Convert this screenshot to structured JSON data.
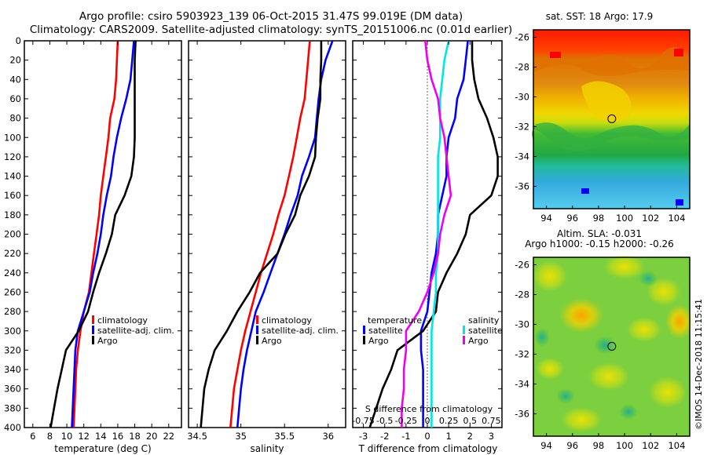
{
  "header": {
    "title_line1": "Argo profile: csiro 5903923_139 06-Oct-2015 31.47S 99.019E (DM data)",
    "title_line2": "Climatology: CARS2009. Satellite-adjusted climatology: synTS_20151006.nc (0.01d earlier)"
  },
  "colors": {
    "climatology": "#ff0000",
    "satellite": "#0000ff",
    "argo": "#000000",
    "temp_sat": "#00e5e5",
    "sal_sat": "#ee00ee"
  },
  "depth_axis": {
    "ticks": [
      "0",
      "20",
      "40",
      "60",
      "80",
      "100",
      "120",
      "140",
      "160",
      "180",
      "200",
      "220",
      "240",
      "260",
      "280",
      "300",
      "320",
      "340",
      "360",
      "380",
      "400"
    ],
    "range": [
      0,
      400
    ]
  },
  "chart_data": [
    {
      "type": "line",
      "name": "temperature",
      "xlabel": "temperature (deg C)",
      "ylabel": "depth",
      "xlim": [
        5,
        23.5
      ],
      "ylim": [
        400,
        0
      ],
      "xticks": [
        "6",
        "8",
        "10",
        "12",
        "14",
        "16",
        "18",
        "20",
        "22"
      ],
      "depth": [
        0,
        20,
        40,
        60,
        80,
        100,
        120,
        140,
        160,
        180,
        200,
        220,
        240,
        260,
        280,
        300,
        320,
        340,
        360,
        380,
        400
      ],
      "series": [
        {
          "name": "climatology",
          "color": "#ff0000",
          "values": [
            16.0,
            15.9,
            15.8,
            15.6,
            15.1,
            14.9,
            14.6,
            14.3,
            14.0,
            13.8,
            13.5,
            13.2,
            12.9,
            12.6,
            12.0,
            11.6,
            11.3,
            11.1,
            11.0,
            10.9,
            10.8
          ]
        },
        {
          "name": "satellite-adj. clim.",
          "color": "#0000ff",
          "values": [
            17.9,
            17.7,
            17.5,
            17.0,
            16.4,
            15.9,
            15.5,
            15.2,
            14.7,
            14.3,
            14.0,
            13.6,
            13.1,
            12.7,
            12.0,
            11.3,
            11.0,
            10.9,
            10.8,
            10.7,
            10.6
          ]
        },
        {
          "name": "Argo",
          "color": "#000000",
          "values": [
            18.1,
            18.0,
            18.0,
            18.0,
            18.0,
            18.0,
            17.9,
            17.6,
            16.8,
            15.7,
            15.3,
            14.6,
            13.8,
            13.1,
            12.5,
            11.4,
            9.9,
            9.4,
            8.9,
            8.5,
            8.1
          ]
        }
      ],
      "legend": [
        "climatology",
        "satellite-adj. clim.",
        "Argo"
      ]
    },
    {
      "type": "line",
      "name": "salinity",
      "xlabel": "salinity",
      "ylabel": "depth",
      "xlim": [
        34.4,
        36.2
      ],
      "ylim": [
        400,
        0
      ],
      "xticks": [
        "34.5",
        "35",
        "35.5",
        "36"
      ],
      "depth": [
        0,
        20,
        40,
        60,
        80,
        100,
        120,
        140,
        160,
        180,
        200,
        220,
        240,
        260,
        280,
        300,
        320,
        340,
        360,
        380,
        400
      ],
      "series": [
        {
          "name": "climatology",
          "color": "#ff0000",
          "values": [
            35.79,
            35.77,
            35.75,
            35.73,
            35.68,
            35.64,
            35.6,
            35.55,
            35.5,
            35.43,
            35.37,
            35.3,
            35.23,
            35.17,
            35.11,
            35.05,
            35.0,
            34.96,
            34.92,
            34.9,
            34.88
          ]
        },
        {
          "name": "satellite-adj. clim.",
          "color": "#0000ff",
          "values": [
            36.05,
            35.97,
            35.92,
            35.89,
            35.87,
            35.85,
            35.78,
            35.7,
            35.65,
            35.57,
            35.5,
            35.42,
            35.34,
            35.26,
            35.17,
            35.12,
            35.07,
            35.03,
            35.0,
            34.98,
            34.96
          ]
        },
        {
          "name": "Argo",
          "color": "#000000",
          "values": [
            35.92,
            35.92,
            35.91,
            35.91,
            35.88,
            35.86,
            35.85,
            35.78,
            35.68,
            35.62,
            35.51,
            35.42,
            35.22,
            35.1,
            34.96,
            34.84,
            34.7,
            34.63,
            34.58,
            34.56,
            34.54
          ]
        }
      ],
      "legend": [
        "climatology",
        "satellite-adj. clim.",
        "Argo"
      ]
    },
    {
      "type": "line",
      "name": "difference from climatology",
      "xlabel": "T difference from climatology",
      "xlabel_top": "S difference from climatology",
      "xlim": [
        -3.5,
        3.5
      ],
      "ylim": [
        400,
        0
      ],
      "xticks": [
        "-3",
        "-2",
        "-1",
        "0",
        "1",
        "2",
        "3"
      ],
      "xticks_top": [
        "-0.75",
        "-0.5",
        "-0.25",
        "0",
        "0.25",
        "0.5",
        "0.75"
      ],
      "depth": [
        0,
        20,
        40,
        60,
        80,
        100,
        120,
        140,
        160,
        180,
        200,
        220,
        240,
        260,
        280,
        300,
        320,
        340,
        360,
        380,
        400
      ],
      "series": [
        {
          "name": "temperature satellite",
          "color": "#0000ff",
          "values": [
            1.9,
            1.8,
            1.7,
            1.4,
            1.3,
            1.0,
            0.9,
            0.9,
            0.7,
            0.5,
            0.5,
            0.4,
            0.2,
            0.1,
            0.0,
            -0.3,
            -0.3,
            -0.2,
            -0.2,
            -0.2,
            -0.2
          ]
        },
        {
          "name": "temperature Argo",
          "color": "#000000",
          "values": [
            2.1,
            2.1,
            2.2,
            2.4,
            2.8,
            3.1,
            3.3,
            3.3,
            3.0,
            2.0,
            1.8,
            1.4,
            0.9,
            0.5,
            0.4,
            -0.2,
            -1.4,
            -1.7,
            -2.1,
            -2.4,
            -2.7
          ]
        },
        {
          "name": "salinity satellite",
          "color": "#00e5e5",
          "values": [
            1.0,
            0.8,
            0.7,
            0.6,
            0.6,
            0.6,
            0.5,
            0.5,
            0.5,
            0.5,
            0.5,
            0.5,
            0.4,
            0.4,
            0.3,
            0.2,
            0.2,
            0.2,
            0.2,
            0.2,
            0.2
          ]
        },
        {
          "name": "salinity Argo",
          "color": "#ee00ee",
          "values": [
            -0.1,
            0.0,
            0.2,
            0.5,
            0.6,
            0.8,
            0.9,
            1.0,
            1.1,
            0.8,
            0.6,
            0.5,
            0.3,
            0.0,
            -0.4,
            -1.0,
            -1.0,
            -1.1,
            -1.1,
            -1.2,
            -1.2
          ]
        }
      ],
      "legend_temperature": {
        "title": "temperature",
        "items": [
          "satellite",
          "Argo"
        ]
      },
      "legend_salinity": {
        "title": "salinity",
        "items": [
          "satellite",
          "Argo"
        ]
      }
    },
    {
      "type": "heatmap",
      "name": "sst_map",
      "title": "sat. SST: 18 Argo: 17.9",
      "xlim": [
        93,
        105
      ],
      "ylim": [
        -37.5,
        -25.5
      ],
      "xticks": [
        "94",
        "96",
        "98",
        "100",
        "102",
        "104"
      ],
      "yticks": [
        "-26",
        "-28",
        "-30",
        "-32",
        "-34",
        "-36"
      ],
      "marker": {
        "lon": 99.019,
        "lat": -31.47
      }
    },
    {
      "type": "heatmap",
      "name": "sla_map",
      "title": "Altim. SLA: -0.031",
      "subtitle": "Argo h1000: -0.15 h2000: -0.26",
      "xlim": [
        93,
        105
      ],
      "ylim": [
        -37.5,
        -25.5
      ],
      "xticks": [
        "94",
        "96",
        "98",
        "100",
        "102",
        "104"
      ],
      "yticks": [
        "-26",
        "-28",
        "-30",
        "-32",
        "-34",
        "-36"
      ],
      "marker": {
        "lon": 99.019,
        "lat": -31.47
      }
    }
  ],
  "watermark": "©IMOS 14-Dec-2018 11:15:41"
}
